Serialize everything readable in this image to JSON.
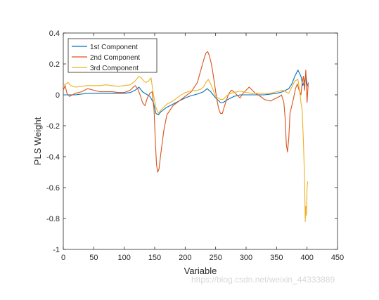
{
  "chart_data": {
    "type": "line",
    "xlabel": "Variable",
    "ylabel": "PLS Weight",
    "xlim": [
      0,
      450
    ],
    "ylim": [
      -1,
      0.4
    ],
    "xticks": [
      0,
      50,
      100,
      150,
      200,
      250,
      300,
      350,
      400,
      450
    ],
    "yticks": [
      -1,
      -0.8,
      -0.6,
      -0.4,
      -0.2,
      0,
      0.2,
      0.4
    ],
    "ytick_labels": [
      "-1",
      "-0.8",
      "-0.6",
      "-0.4",
      "-0.2",
      "0",
      "0.2",
      "0.4"
    ],
    "grid": false,
    "legend_position": "top-left",
    "series": [
      {
        "name": "1st Component",
        "color": "#0072BD",
        "x": [
          0,
          10,
          20,
          40,
          60,
          80,
          100,
          110,
          118,
          124,
          130,
          138,
          142,
          148,
          152,
          156,
          160,
          170,
          180,
          190,
          200,
          210,
          220,
          230,
          236,
          242,
          250,
          258,
          262,
          270,
          280,
          290,
          300,
          310,
          320,
          330,
          340,
          350,
          360,
          365,
          370,
          375,
          380,
          385,
          390,
          393,
          396,
          398,
          400,
          402
        ],
        "y": [
          0.0,
          0.0,
          0.0,
          0.01,
          0.01,
          0.01,
          0.01,
          0.015,
          0.03,
          0.05,
          0.02,
          0.0,
          -0.01,
          -0.05,
          -0.12,
          -0.13,
          -0.11,
          -0.08,
          -0.06,
          -0.04,
          -0.02,
          -0.005,
          0.005,
          0.02,
          0.04,
          0.02,
          -0.02,
          -0.05,
          -0.05,
          -0.03,
          -0.01,
          0.0,
          0.0,
          0.0,
          0.0,
          0.0,
          0.005,
          0.01,
          0.02,
          0.03,
          0.04,
          0.07,
          0.12,
          0.16,
          0.12,
          0.06,
          0.09,
          0.13,
          0.07,
          0.05
        ]
      },
      {
        "name": "2nd Component",
        "color": "#D95319",
        "x": [
          0,
          3,
          6,
          10,
          15,
          20,
          30,
          40,
          50,
          60,
          70,
          80,
          90,
          100,
          110,
          115,
          118,
          122,
          126,
          130,
          134,
          138,
          142,
          146,
          149,
          151,
          153,
          155,
          157,
          160,
          165,
          170,
          180,
          190,
          200,
          210,
          220,
          225,
          230,
          234,
          237,
          240,
          243,
          246,
          249,
          252,
          255,
          258,
          261,
          264,
          268,
          272,
          276,
          280,
          285,
          290,
          295,
          300,
          305,
          310,
          315,
          320,
          330,
          340,
          350,
          355,
          358,
          362,
          364,
          366,
          368,
          370,
          372,
          375,
          378,
          381,
          384,
          387,
          390,
          392,
          394,
          396,
          398,
          400,
          402
        ],
        "y": [
          0.03,
          0.06,
          0.01,
          -0.01,
          0.0,
          0.01,
          0.02,
          0.04,
          0.03,
          0.02,
          0.02,
          0.02,
          0.015,
          0.015,
          0.03,
          0.05,
          0.06,
          0.04,
          0.0,
          -0.05,
          -0.07,
          -0.02,
          0.01,
          0.02,
          -0.1,
          -0.3,
          -0.45,
          -0.5,
          -0.48,
          -0.38,
          -0.23,
          -0.13,
          -0.07,
          -0.04,
          -0.01,
          0.02,
          0.08,
          0.15,
          0.22,
          0.27,
          0.28,
          0.25,
          0.2,
          0.13,
          0.05,
          -0.03,
          -0.09,
          -0.12,
          -0.12,
          -0.08,
          -0.03,
          0.01,
          0.03,
          0.02,
          0.0,
          -0.02,
          0.01,
          0.03,
          0.05,
          0.03,
          0.01,
          0.0,
          -0.03,
          -0.04,
          -0.02,
          -0.01,
          0.0,
          -0.05,
          -0.15,
          -0.32,
          -0.37,
          -0.28,
          -0.12,
          -0.07,
          -0.02,
          0.04,
          0.07,
          0.03,
          0.0,
          0.08,
          0.12,
          0.03,
          0.16,
          -0.05,
          0.08
        ]
      },
      {
        "name": "3rd Component",
        "color": "#EDB120",
        "x": [
          0,
          4,
          8,
          12,
          20,
          30,
          40,
          50,
          60,
          70,
          80,
          90,
          100,
          110,
          118,
          124,
          128,
          132,
          136,
          140,
          144,
          148,
          152,
          156,
          160,
          170,
          180,
          190,
          200,
          210,
          220,
          225,
          230,
          234,
          238,
          242,
          246,
          250,
          254,
          258,
          262,
          266,
          270,
          275,
          280,
          285,
          290,
          295,
          300,
          310,
          320,
          330,
          340,
          350,
          360,
          365,
          370,
          375,
          380,
          385,
          388,
          390,
          392,
          394,
          396,
          397,
          398,
          399,
          400,
          401
        ],
        "y": [
          0.06,
          0.07,
          0.08,
          0.06,
          0.05,
          0.055,
          0.06,
          0.06,
          0.06,
          0.065,
          0.06,
          0.055,
          0.06,
          0.065,
          0.09,
          0.12,
          0.11,
          0.09,
          0.08,
          0.09,
          0.11,
          0.0,
          -0.08,
          -0.12,
          -0.1,
          -0.06,
          -0.04,
          -0.01,
          0.015,
          0.025,
          0.03,
          0.035,
          0.05,
          0.08,
          0.1,
          0.07,
          0.03,
          -0.01,
          -0.02,
          -0.03,
          -0.03,
          -0.015,
          0.0,
          0.01,
          0.015,
          0.02,
          0.025,
          0.02,
          0.015,
          0.01,
          0.01,
          0.01,
          0.01,
          0.02,
          0.03,
          0.02,
          0.01,
          0.05,
          0.09,
          0.1,
          0.02,
          -0.05,
          -0.1,
          -0.3,
          -0.55,
          -0.82,
          -0.72,
          -0.78,
          -0.6,
          -0.56
        ]
      }
    ]
  },
  "watermark": "https://blog.csdn.net/weixin_44333889"
}
